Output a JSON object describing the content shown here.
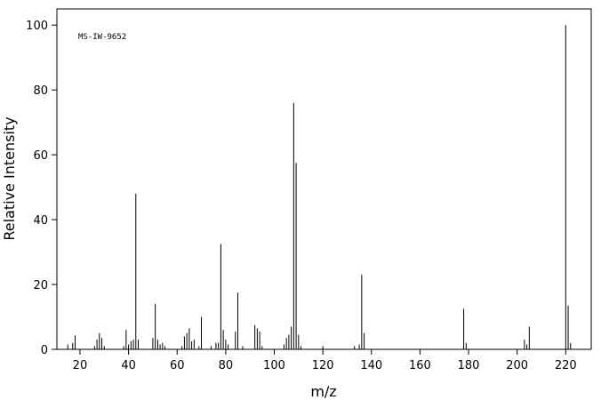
{
  "chart_data": {
    "type": "stem",
    "annotation": "MS-IW-9652",
    "xlabel": "m/z",
    "ylabel": "Relative Intensity",
    "color": "#000000",
    "xlim": [
      10.5,
      230.5
    ],
    "ylim": [
      0,
      105
    ],
    "xticks": [
      20,
      40,
      60,
      80,
      100,
      120,
      140,
      160,
      180,
      200,
      220
    ],
    "yticks": [
      0,
      20,
      40,
      60,
      80,
      100
    ],
    "x": [
      15,
      17,
      18,
      26,
      27,
      28,
      29,
      30,
      38,
      39,
      40,
      41,
      42,
      43,
      44,
      50,
      51,
      52,
      53,
      54,
      55,
      62,
      63,
      64,
      65,
      66,
      67,
      69,
      70,
      74,
      76,
      77,
      78,
      79,
      80,
      81,
      84,
      85,
      87,
      92,
      93,
      94,
      95,
      104,
      105,
      106,
      107,
      108,
      109,
      110,
      111,
      120,
      133,
      135,
      136,
      137,
      178,
      179,
      203,
      204,
      205,
      220,
      221,
      222
    ],
    "values": [
      1.5,
      2,
      4.3,
      1,
      3,
      5,
      3.5,
      1,
      1,
      6,
      1.5,
      2.5,
      3,
      48,
      3,
      3.5,
      14,
      3,
      1.5,
      2,
      1,
      1,
      4,
      5,
      6.5,
      2.5,
      3,
      1,
      10,
      1,
      2,
      2,
      32.5,
      6,
      3,
      1.5,
      5.5,
      17.5,
      1,
      7.5,
      6.5,
      5.5,
      1,
      1.5,
      3.5,
      4.5,
      7,
      76,
      57.5,
      4.5,
      1,
      1,
      1,
      1.5,
      23,
      5,
      12.5,
      2,
      3,
      1.5,
      7,
      100,
      13.5,
      2
    ]
  }
}
